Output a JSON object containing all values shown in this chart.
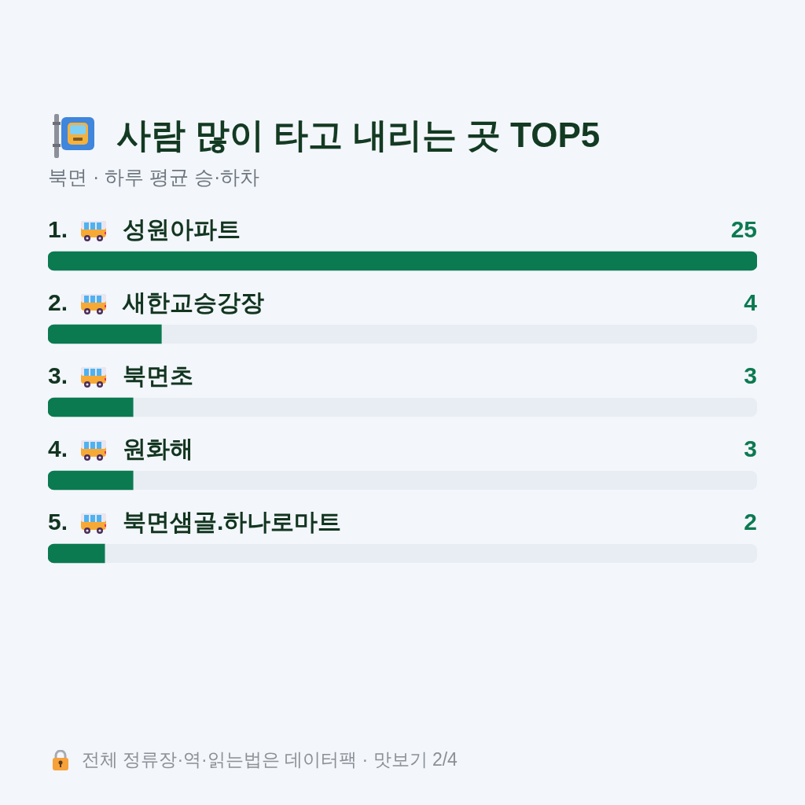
{
  "chart_data": {
    "type": "bar",
    "orientation": "horizontal",
    "title": "사람 많이 타고 내리는 곳 TOP5",
    "subtitle": "북면 · 하루 평균 승·하차",
    "categories": [
      "1. 성원아파트",
      "2. 새한교승강장",
      "3. 북면초",
      "4. 원화해",
      "5. 북면샘골.하나로마트"
    ],
    "values": [
      25,
      4,
      3,
      3,
      2
    ],
    "color": "#0b7a50",
    "xlim": [
      0,
      25
    ],
    "data_labels": true,
    "tick_labels": "y",
    "annotations": [
      "전체 정류장·역·읽는법은 데이터팩 · 맛보기 2/4"
    ]
  }
}
